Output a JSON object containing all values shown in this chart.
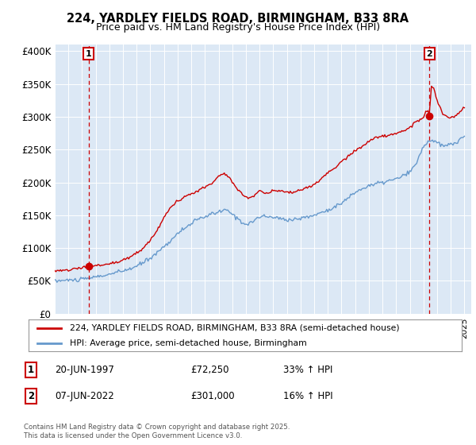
{
  "title_line1": "224, YARDLEY FIELDS ROAD, BIRMINGHAM, B33 8RA",
  "title_line2": "Price paid vs. HM Land Registry's House Price Index (HPI)",
  "bg_color": "#dce8f5",
  "ylim": [
    0,
    410000
  ],
  "yticks": [
    0,
    50000,
    100000,
    150000,
    200000,
    250000,
    300000,
    350000,
    400000
  ],
  "ytick_labels": [
    "£0",
    "£50K",
    "£100K",
    "£150K",
    "£200K",
    "£250K",
    "£300K",
    "£350K",
    "£400K"
  ],
  "sale1": {
    "date_num": 1997.47,
    "price": 72250,
    "label": "1"
  },
  "sale2": {
    "date_num": 2022.43,
    "price": 301000,
    "label": "2"
  },
  "legend_line1": "224, YARDLEY FIELDS ROAD, BIRMINGHAM, B33 8RA (semi-detached house)",
  "legend_line2": "HPI: Average price, semi-detached house, Birmingham",
  "note1_label": "1",
  "note1_date": "20-JUN-1997",
  "note1_price": "£72,250",
  "note1_hpi": "33% ↑ HPI",
  "note2_label": "2",
  "note2_date": "07-JUN-2022",
  "note2_price": "£301,000",
  "note2_hpi": "16% ↑ HPI",
  "footer": "Contains HM Land Registry data © Crown copyright and database right 2025.\nThis data is licensed under the Open Government Licence v3.0.",
  "line_color_red": "#cc0000",
  "line_color_blue": "#6699cc",
  "xmin": 1995.0,
  "xmax": 2025.5
}
